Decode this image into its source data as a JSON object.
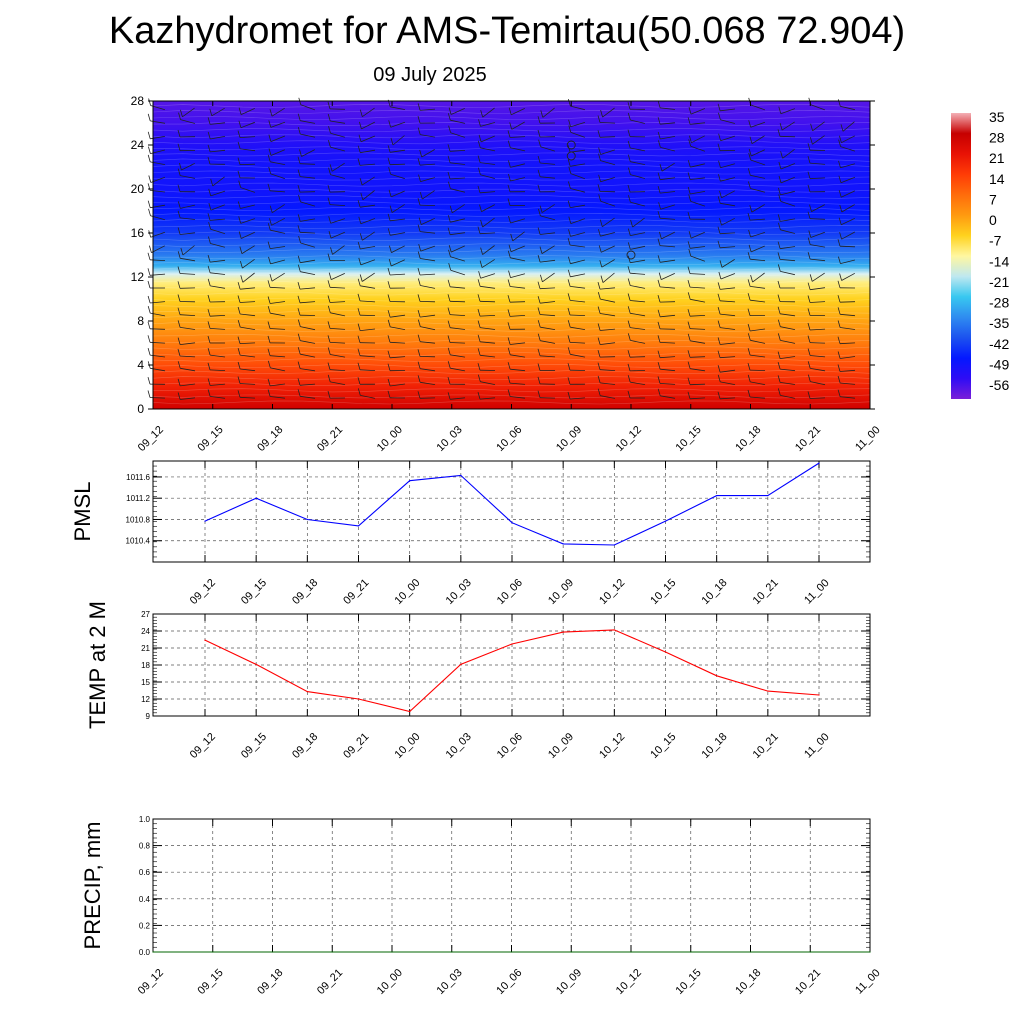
{
  "header": {
    "title": "Kazhydromet for AMS-Temirtau(50.068 72.904)",
    "date": "09 July 2025"
  },
  "chart_data": [
    {
      "type": "heatmap",
      "name": "temperature-wind-cross-section",
      "x_ticks": [
        "09_12",
        "09_15",
        "09_18",
        "09_21",
        "10_00",
        "10_03",
        "10_06",
        "10_09",
        "10_12",
        "10_15",
        "10_18",
        "10_21",
        "11_00"
      ],
      "y_ticks": [
        "0",
        "4",
        "8",
        "12",
        "16",
        "20",
        "24",
        "28"
      ],
      "ylim": [
        0,
        28
      ],
      "temperature_levels": [
        {
          "level": 0,
          "value": 30
        },
        {
          "level": 2,
          "value": 22
        },
        {
          "level": 4,
          "value": 16
        },
        {
          "level": 6,
          "value": 10
        },
        {
          "level": 8,
          "value": 5
        },
        {
          "level": 10,
          "value": 0
        },
        {
          "level": 11.5,
          "value": -6
        },
        {
          "level": 12.3,
          "value": -14
        },
        {
          "level": 13,
          "value": -24
        },
        {
          "level": 14,
          "value": -33
        },
        {
          "level": 16,
          "value": -44
        },
        {
          "level": 18,
          "value": -50
        },
        {
          "level": 20,
          "value": -52
        },
        {
          "level": 22,
          "value": -52
        },
        {
          "level": 24,
          "value": -54
        },
        {
          "level": 26,
          "value": -57
        },
        {
          "level": 28,
          "value": -58
        }
      ],
      "colorbar_labels": [
        "35",
        "28",
        "21",
        "14",
        "7",
        "0",
        "-7",
        "-14",
        "-21",
        "-28",
        "-35",
        "-42",
        "-49",
        "-56"
      ],
      "colorbar_values": [
        35,
        28,
        21,
        14,
        7,
        0,
        -7,
        -14,
        -21,
        -28,
        -35,
        -42,
        -49,
        -56
      ],
      "colorbar_colors": [
        "#7a1fd8",
        "#2f0cf5",
        "#0418ff",
        "#1c52ef",
        "#2f8cf0",
        "#38c8f0",
        "#bfe8f0",
        "#fff7a0",
        "#ffd21e",
        "#ff9a10",
        "#ff6c0b",
        "#ff3c06",
        "#e81205",
        "#c60000",
        "#f4b0b6"
      ],
      "calm_markers": [
        {
          "x": "10_09",
          "level": 24
        },
        {
          "x": "10_09",
          "level": 23
        },
        {
          "x": "10_12",
          "level": 14
        }
      ]
    },
    {
      "type": "line",
      "name": "PMSL",
      "ylabel": "PMSL",
      "x_ticks": [
        "09_12",
        "09_15",
        "09_18",
        "09_21",
        "10_00",
        "10_03",
        "10_06",
        "10_09",
        "10_12",
        "10_15",
        "10_18",
        "10_21",
        "11_00"
      ],
      "y_ticks": [
        "1010.4",
        "1010.8",
        "1011.2",
        "1011.6"
      ],
      "ylim": [
        1010.0,
        1011.9
      ],
      "values": [
        1010.77,
        1011.2,
        1010.8,
        1010.68,
        1011.53,
        1011.63,
        1010.74,
        1010.34,
        1010.32,
        1010.77,
        1011.25,
        1011.25,
        1011.86
      ],
      "color": "#0000ff",
      "grid": true
    },
    {
      "type": "line",
      "name": "TEMP at 2 M",
      "ylabel": "TEMP at 2 M",
      "x_ticks": [
        "09_12",
        "09_15",
        "09_18",
        "09_21",
        "10_00",
        "10_03",
        "10_06",
        "10_09",
        "10_12",
        "10_15",
        "10_18",
        "10_21",
        "11_00"
      ],
      "y_ticks": [
        "9",
        "12",
        "15",
        "18",
        "21",
        "24",
        "27"
      ],
      "ylim": [
        9,
        27
      ],
      "values": [
        22.4,
        18.1,
        13.3,
        12.0,
        9.8,
        18.1,
        21.7,
        23.8,
        24.2,
        20.3,
        16.1,
        13.4,
        12.7
      ],
      "color": "#ff0000",
      "grid": true
    },
    {
      "type": "line",
      "name": "PRECIP, mm",
      "ylabel": "PRECIP, mm",
      "x_ticks": [
        "09_12",
        "09_15",
        "09_18",
        "09_21",
        "10_00",
        "10_03",
        "10_06",
        "10_09",
        "10_12",
        "10_15",
        "10_18",
        "10_21",
        "11_00"
      ],
      "y_ticks": [
        "0.0",
        "0.2",
        "0.4",
        "0.6",
        "0.8",
        "1.0"
      ],
      "ylim": [
        0,
        1
      ],
      "values": [
        0,
        0,
        0,
        0,
        0,
        0,
        0,
        0,
        0,
        0,
        0,
        0,
        0
      ],
      "color": "#006400",
      "grid": true
    }
  ]
}
